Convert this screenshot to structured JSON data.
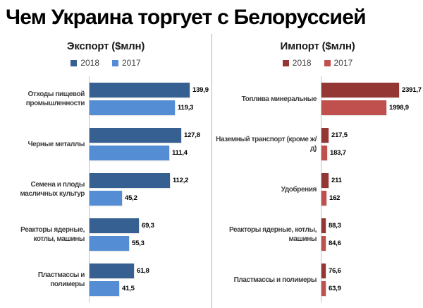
{
  "title": "Чем Украина торгует с Белоруссией",
  "chart_data": [
    {
      "type": "bar",
      "orientation": "horizontal",
      "title": "Экспорт ($млн)",
      "legend_position": "top",
      "grid": false,
      "value_labels": true,
      "decimal_separator": ",",
      "categories": [
        "Отходы пищевой промышленности",
        "Черные металлы",
        "Семена и плоды масличных культур",
        "Реакторы ядерные, котлы, машины",
        "Пластмассы и полимеры"
      ],
      "series": [
        {
          "name": "2018",
          "color": "#376092",
          "values": [
            139.9,
            127.8,
            112.2,
            69.3,
            61.8
          ]
        },
        {
          "name": "2017",
          "color": "#548dd4",
          "values": [
            119.3,
            111.4,
            45.2,
            55.3,
            41.5
          ]
        }
      ]
    },
    {
      "type": "bar",
      "orientation": "horizontal",
      "title": "Импорт ($млн)",
      "legend_position": "top",
      "grid": false,
      "value_labels": true,
      "decimal_separator": ",",
      "categories": [
        "Топлива минеральные",
        "Наземный транспорт (кроме ж/д)",
        "Удобрения",
        "Реакторы ядерные, котлы, машины",
        "Пластмассы и полимеры"
      ],
      "series": [
        {
          "name": "2018",
          "color": "#943634",
          "values": [
            2391.7,
            217.5,
            211,
            88.3,
            76.6
          ]
        },
        {
          "name": "2017",
          "color": "#c0504d",
          "values": [
            1998.9,
            183.7,
            162,
            84.6,
            63.9
          ]
        }
      ]
    }
  ]
}
